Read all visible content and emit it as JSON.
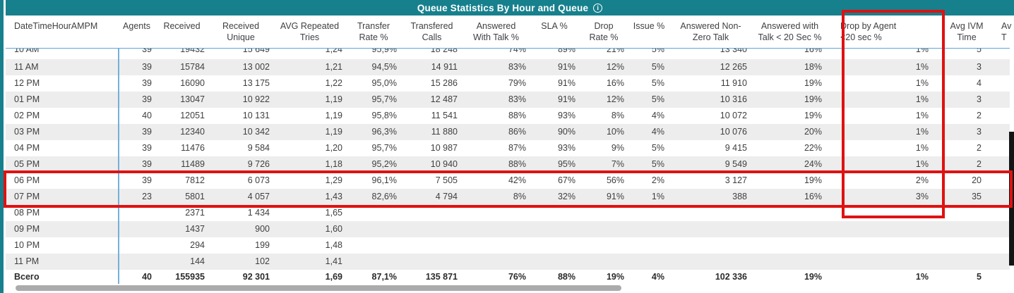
{
  "title": {
    "text": "Queue Statistics By Hour and Queue",
    "info_icon": "i"
  },
  "colors": {
    "accent_teal": "#17808D",
    "annotation_red": "#DF1212",
    "row_band": "#EDEDED",
    "grid_blue": "#5FA5D8",
    "scrollbar": "#ABABAB"
  },
  "table": {
    "columns": [
      {
        "id": "hour",
        "lines": [
          "DateTimeHourAMPM",
          ""
        ]
      },
      {
        "id": "agents",
        "lines": [
          "Agents",
          ""
        ]
      },
      {
        "id": "received",
        "lines": [
          "Received",
          ""
        ]
      },
      {
        "id": "received_unique",
        "lines": [
          "Received",
          "Unique"
        ]
      },
      {
        "id": "avg_repeated_tries",
        "lines": [
          "AVG Repeated",
          "Tries"
        ]
      },
      {
        "id": "transfer_rate",
        "lines": [
          "Transfer",
          "Rate %"
        ]
      },
      {
        "id": "transfered_calls",
        "lines": [
          "Transfered",
          "Calls"
        ]
      },
      {
        "id": "answered_with_talk",
        "lines": [
          "Answered",
          "With Talk %"
        ]
      },
      {
        "id": "sla",
        "lines": [
          "SLA %",
          ""
        ]
      },
      {
        "id": "drop_rate",
        "lines": [
          "Drop",
          "Rate %"
        ]
      },
      {
        "id": "issue",
        "lines": [
          "Issue %",
          ""
        ]
      },
      {
        "id": "answered_non_zero",
        "lines": [
          "Answered Non-",
          "Zero Talk"
        ]
      },
      {
        "id": "answered_talk_lt20",
        "lines": [
          "Answered with",
          "Talk < 20 Sec %"
        ]
      },
      {
        "id": "drop_by_agent_lt20",
        "lines": [
          "Drop by Agent",
          "<20 sec %"
        ]
      },
      {
        "id": "avg_ivm_time",
        "lines": [
          "Avg IVM",
          "Time"
        ]
      },
      {
        "id": "clipped_col",
        "lines": [
          "Av",
          "T"
        ]
      }
    ],
    "rows": [
      {
        "clipped": true,
        "cells": [
          "10 AM",
          "39",
          "19432",
          "15 649",
          "1,24",
          "95,9%",
          "18 248",
          "74%",
          "89%",
          "21%",
          "5%",
          "13 340",
          "16%",
          "1%",
          "5",
          ""
        ]
      },
      {
        "clipped": false,
        "cells": [
          "11 AM",
          "39",
          "15784",
          "13 002",
          "1,21",
          "94,5%",
          "14 911",
          "83%",
          "91%",
          "12%",
          "5%",
          "12 265",
          "18%",
          "1%",
          "3",
          ""
        ]
      },
      {
        "clipped": false,
        "cells": [
          "12 PM",
          "39",
          "16090",
          "13 175",
          "1,22",
          "95,0%",
          "15 286",
          "79%",
          "91%",
          "16%",
          "5%",
          "11 910",
          "19%",
          "1%",
          "4",
          ""
        ]
      },
      {
        "clipped": false,
        "cells": [
          "01 PM",
          "39",
          "13047",
          "10 922",
          "1,19",
          "95,7%",
          "12 487",
          "83%",
          "91%",
          "12%",
          "5%",
          "10 316",
          "19%",
          "1%",
          "3",
          ""
        ]
      },
      {
        "clipped": false,
        "cells": [
          "02 PM",
          "40",
          "12051",
          "10 131",
          "1,19",
          "95,8%",
          "11 541",
          "88%",
          "93%",
          "8%",
          "4%",
          "10 072",
          "19%",
          "1%",
          "2",
          ""
        ]
      },
      {
        "clipped": false,
        "cells": [
          "03 PM",
          "39",
          "12340",
          "10 342",
          "1,19",
          "96,3%",
          "11 880",
          "86%",
          "90%",
          "10%",
          "4%",
          "10 076",
          "20%",
          "1%",
          "3",
          ""
        ]
      },
      {
        "clipped": false,
        "cells": [
          "04 PM",
          "39",
          "11476",
          "9 584",
          "1,20",
          "95,7%",
          "10 987",
          "87%",
          "93%",
          "9%",
          "5%",
          "9 415",
          "22%",
          "1%",
          "2",
          ""
        ]
      },
      {
        "clipped": false,
        "cells": [
          "05 PM",
          "39",
          "11489",
          "9 726",
          "1,18",
          "95,2%",
          "10 940",
          "88%",
          "95%",
          "7%",
          "5%",
          "9 549",
          "24%",
          "1%",
          "2",
          ""
        ]
      },
      {
        "clipped": false,
        "cells": [
          "06 PM",
          "39",
          "7812",
          "6 073",
          "1,29",
          "96,1%",
          "7 505",
          "42%",
          "67%",
          "56%",
          "2%",
          "3 127",
          "19%",
          "2%",
          "20",
          ""
        ]
      },
      {
        "clipped": false,
        "cells": [
          "07 PM",
          "23",
          "5801",
          "4 057",
          "1,43",
          "82,6%",
          "4 794",
          "8%",
          "32%",
          "91%",
          "1%",
          "388",
          "16%",
          "3%",
          "35",
          ""
        ]
      },
      {
        "clipped": false,
        "cells": [
          "08 PM",
          "",
          "2371",
          "1 434",
          "1,65",
          "",
          "",
          "",
          "",
          "",
          "",
          "",
          "",
          "",
          "",
          ""
        ]
      },
      {
        "clipped": false,
        "cells": [
          "09 PM",
          "",
          "1437",
          "900",
          "1,60",
          "",
          "",
          "",
          "",
          "",
          "",
          "",
          "",
          "",
          "",
          ""
        ]
      },
      {
        "clipped": false,
        "cells": [
          "10 PM",
          "",
          "294",
          "199",
          "1,48",
          "",
          "",
          "",
          "",
          "",
          "",
          "",
          "",
          "",
          "",
          ""
        ]
      },
      {
        "clipped": false,
        "cells": [
          "11 PM",
          "",
          "144",
          "102",
          "1,41",
          "",
          "",
          "",
          "",
          "",
          "",
          "",
          "",
          "",
          "",
          ""
        ]
      }
    ],
    "total": {
      "cells": [
        "Всего",
        "40",
        "155935",
        "92 301",
        "1,69",
        "87,1%",
        "135 871",
        "76%",
        "88%",
        "19%",
        "4%",
        "102 336",
        "19%",
        "1%",
        "5",
        ""
      ]
    }
  },
  "annotations": {
    "column_highlight": "Drop by Agent <20 sec %",
    "rows_highlight": "06 PM and 07 PM rows"
  }
}
